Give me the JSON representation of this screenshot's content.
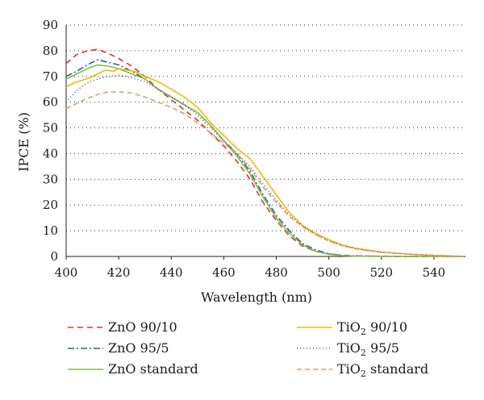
{
  "chart_data": {
    "type": "line",
    "title": "",
    "xlabel": "Wavelength (nm)",
    "ylabel": "IPCE (%)",
    "xlim": [
      400,
      552
    ],
    "ylim": [
      0,
      90
    ],
    "x_ticks": [
      400,
      420,
      440,
      460,
      480,
      500,
      520,
      540
    ],
    "y_ticks": [
      0,
      10,
      20,
      30,
      40,
      50,
      60,
      70,
      80,
      90
    ],
    "grid": "horizontal-dotted",
    "legend_position": "bottom",
    "series": [
      {
        "name": "ZnO 90/10",
        "label_main": "ZnO 90/10",
        "label_sub": "",
        "label_tail": "",
        "color": "#e03030",
        "dash": "7 5",
        "x": [
          400,
          404,
          408,
          412,
          416,
          420,
          425,
          430,
          435,
          440,
          445,
          450,
          455,
          460,
          465,
          470,
          475,
          480,
          485,
          490,
          495,
          500,
          505,
          510,
          520,
          530,
          540,
          552
        ],
        "y": [
          75,
          78.5,
          80,
          80.5,
          79,
          77,
          74,
          70,
          65,
          61,
          57,
          53,
          48,
          43,
          37,
          30,
          21,
          14,
          8,
          4,
          2,
          1,
          0.4,
          0.2,
          0.1,
          0,
          0,
          0
        ]
      },
      {
        "name": "ZnO 95/5",
        "label_main": "ZnO 95/5",
        "label_sub": "",
        "label_tail": "",
        "color": "#2f5f9e",
        "dash": "8 3 2 3",
        "x": [
          400,
          404,
          408,
          412,
          416,
          420,
          425,
          430,
          435,
          440,
          445,
          450,
          455,
          460,
          465,
          470,
          475,
          480,
          485,
          490,
          495,
          500,
          505,
          510,
          520,
          530,
          540,
          552
        ],
        "y": [
          70,
          72,
          74.5,
          76.5,
          75.5,
          74.5,
          72,
          69,
          65,
          62,
          59,
          56,
          51,
          45,
          40,
          33,
          24,
          16,
          10,
          5,
          2.5,
          1,
          0.5,
          0.2,
          0.1,
          0,
          0,
          0
        ]
      },
      {
        "name": "ZnO standard",
        "label_main": "ZnO standard",
        "label_sub": "",
        "label_tail": "",
        "color": "#7dc242",
        "dash": "",
        "x": [
          400,
          404,
          408,
          412,
          416,
          420,
          425,
          430,
          435,
          440,
          445,
          450,
          455,
          460,
          465,
          470,
          475,
          480,
          485,
          490,
          495,
          500,
          505,
          510,
          520,
          530,
          540,
          552
        ],
        "y": [
          69,
          71,
          73,
          74.5,
          74,
          73,
          71,
          69,
          65,
          62,
          59,
          56,
          51,
          45,
          39,
          32,
          23,
          15,
          9,
          4.5,
          2,
          0.8,
          0.3,
          0.1,
          0,
          0,
          0,
          0
        ]
      },
      {
        "name": "TiO2 90/10",
        "label_main": "TiO",
        "label_sub": "2",
        "label_tail": " 90/10",
        "color": "#f5b800",
        "dash": "",
        "x": [
          400,
          403,
          406,
          409,
          412,
          415,
          418,
          420,
          423,
          426,
          430,
          435,
          440,
          445,
          450,
          455,
          460,
          465,
          470,
          475,
          480,
          485,
          490,
          495,
          500,
          505,
          510,
          515,
          520,
          530,
          540,
          552
        ],
        "y": [
          66,
          67.5,
          68.5,
          69.5,
          71,
          72.5,
          72,
          73,
          72.5,
          72,
          70,
          68,
          65,
          62,
          58,
          52,
          47,
          42,
          38,
          31,
          24,
          17,
          12,
          9,
          6.5,
          4.5,
          3.2,
          2.4,
          1.7,
          0.9,
          0.4,
          0
        ]
      },
      {
        "name": "TiO2 95/5",
        "label_main": "TiO",
        "label_sub": "2",
        "label_tail": " 95/5",
        "color": "#5a4e9a",
        "dash": "1 3",
        "x": [
          400,
          404,
          408,
          412,
          416,
          420,
          425,
          430,
          435,
          440,
          445,
          450,
          455,
          460,
          465,
          470,
          475,
          480,
          485,
          490,
          495,
          500,
          505,
          510,
          515,
          520,
          530,
          540,
          552
        ],
        "y": [
          60,
          64.5,
          67.5,
          69,
          70,
          70.5,
          69.5,
          68,
          65,
          62,
          59,
          55,
          50,
          45,
          40,
          35,
          28,
          22,
          16,
          12,
          8.5,
          6,
          4.3,
          3.1,
          2.3,
          1.7,
          0.9,
          0.4,
          0
        ]
      },
      {
        "name": "TiO2 standard",
        "label_main": "TiO",
        "label_sub": "2",
        "label_tail": " standard",
        "color": "#e39a5f",
        "dash": "6 4",
        "x": [
          400,
          404,
          408,
          412,
          416,
          420,
          425,
          430,
          435,
          440,
          445,
          450,
          455,
          460,
          465,
          470,
          475,
          480,
          485,
          490,
          495,
          500,
          505,
          510,
          515,
          520,
          530,
          540,
          552
        ],
        "y": [
          57.5,
          59.5,
          61.5,
          63,
          64,
          64,
          63.5,
          62,
          60,
          58,
          55.5,
          52,
          48,
          44,
          40,
          34,
          27,
          21,
          15.5,
          11.5,
          8.5,
          6,
          4.2,
          3,
          2.2,
          1.6,
          0.9,
          0.4,
          0
        ]
      }
    ]
  }
}
